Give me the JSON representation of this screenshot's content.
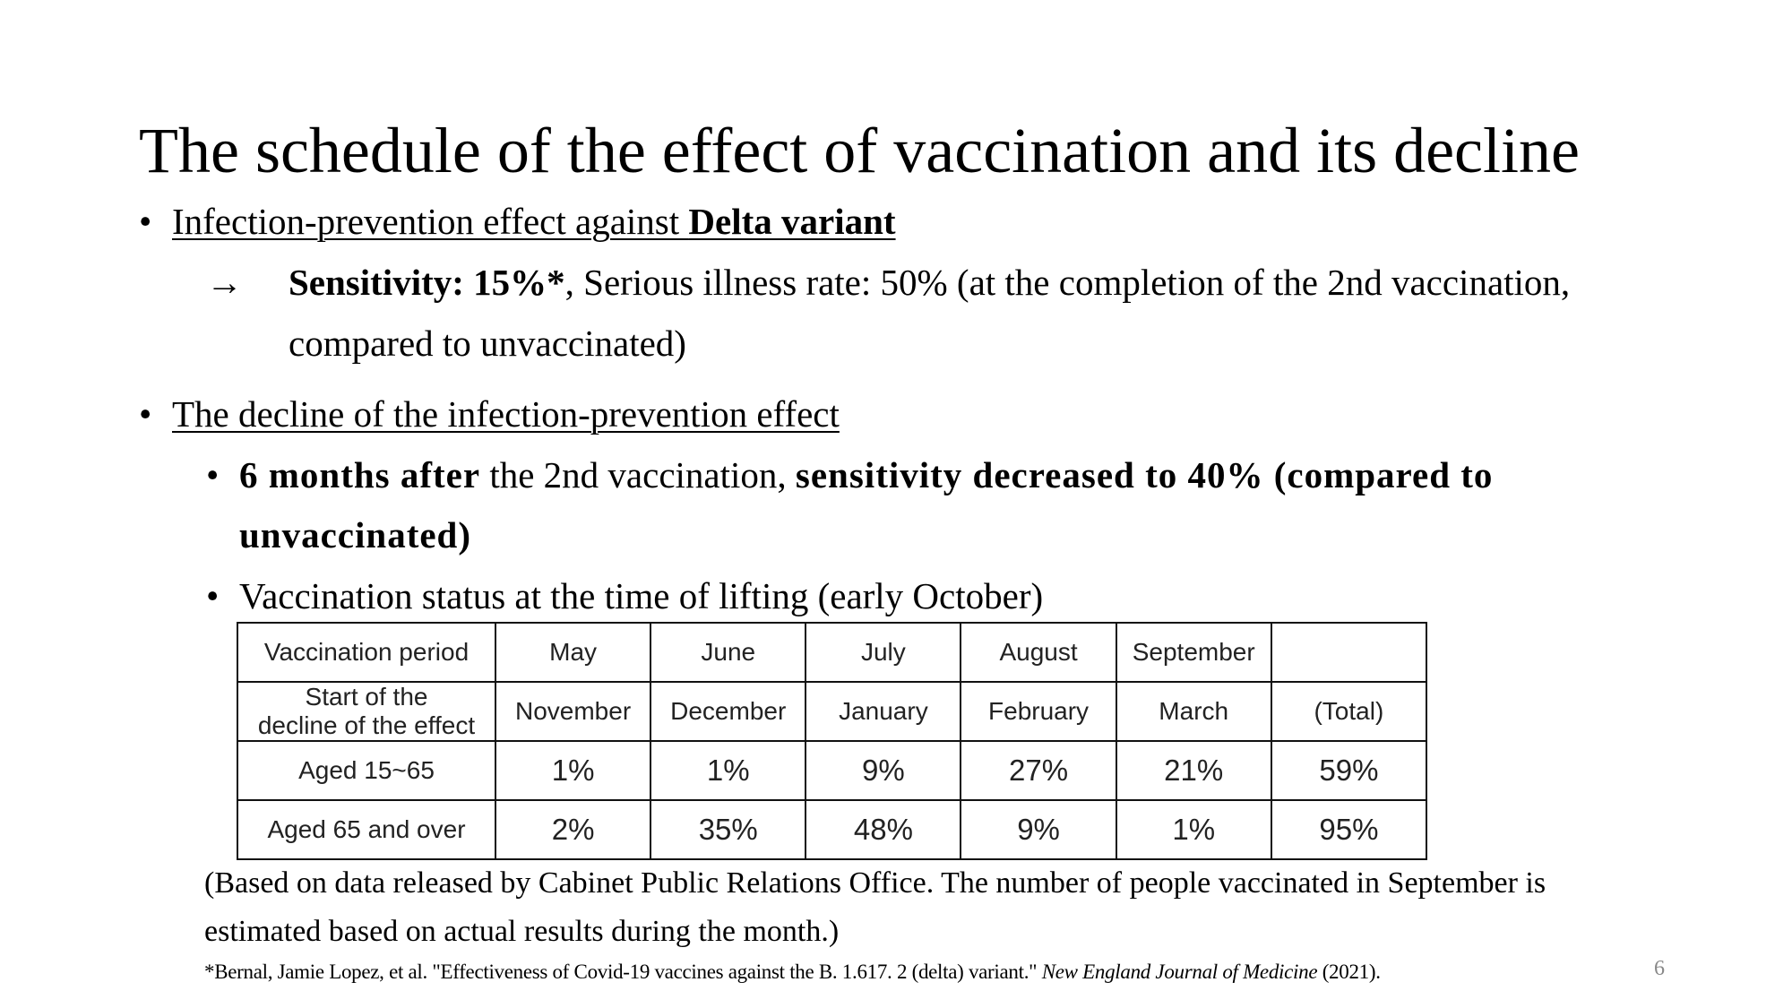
{
  "title": "The schedule of the effect of vaccination and its decline",
  "bullet_char": "•",
  "arrow_char": "→",
  "section1": {
    "heading_prefix": "Infection-prevention effect against ",
    "heading_bold": "Delta variant",
    "detail_bold": "Sensitivity: 15%*",
    "detail_rest": ", Serious illness rate: 50% (at the completion of the 2nd vaccination,",
    "detail_line2": "compared to unvaccinated)"
  },
  "section2": {
    "heading": "The decline of the infection-prevention effect",
    "sub1_bold_a": "6 months after",
    "sub1_normal": " the 2nd vaccination, ",
    "sub1_bold_b": "sensitivity decreased to 40% (compared to",
    "sub1_line2": "unvaccinated)",
    "sub2": "Vaccination status at the time of lifting (early October)"
  },
  "table": {
    "row1": [
      "Vaccination period",
      "May",
      "June",
      "July",
      "August",
      "September",
      ""
    ],
    "row2_label_line1": "Start of the",
    "row2_label_line2": "decline of the effect",
    "row2": [
      "November",
      "December",
      "January",
      "February",
      "March",
      "(Total)"
    ],
    "row3": [
      "Aged 15~65",
      "1%",
      "1%",
      "9%",
      "27%",
      "21%",
      "59%"
    ],
    "row4": [
      "Aged 65 and over",
      "2%",
      "35%",
      "48%",
      "9%",
      "1%",
      "95%"
    ]
  },
  "note_line1": "(Based on data released by Cabinet Public Relations Office. The number of people vaccinated in September is",
  "note_line2": "estimated based on actual results during the month.)",
  "reference": {
    "prefix": "*Bernal, Jamie Lopez, et al. \"Effectiveness of Covid-19 vaccines against the B. 1.617. 2 (delta) variant.\" ",
    "journal": "New England Journal of Medicine",
    "suffix": " (2021)."
  },
  "page_number": "6"
}
